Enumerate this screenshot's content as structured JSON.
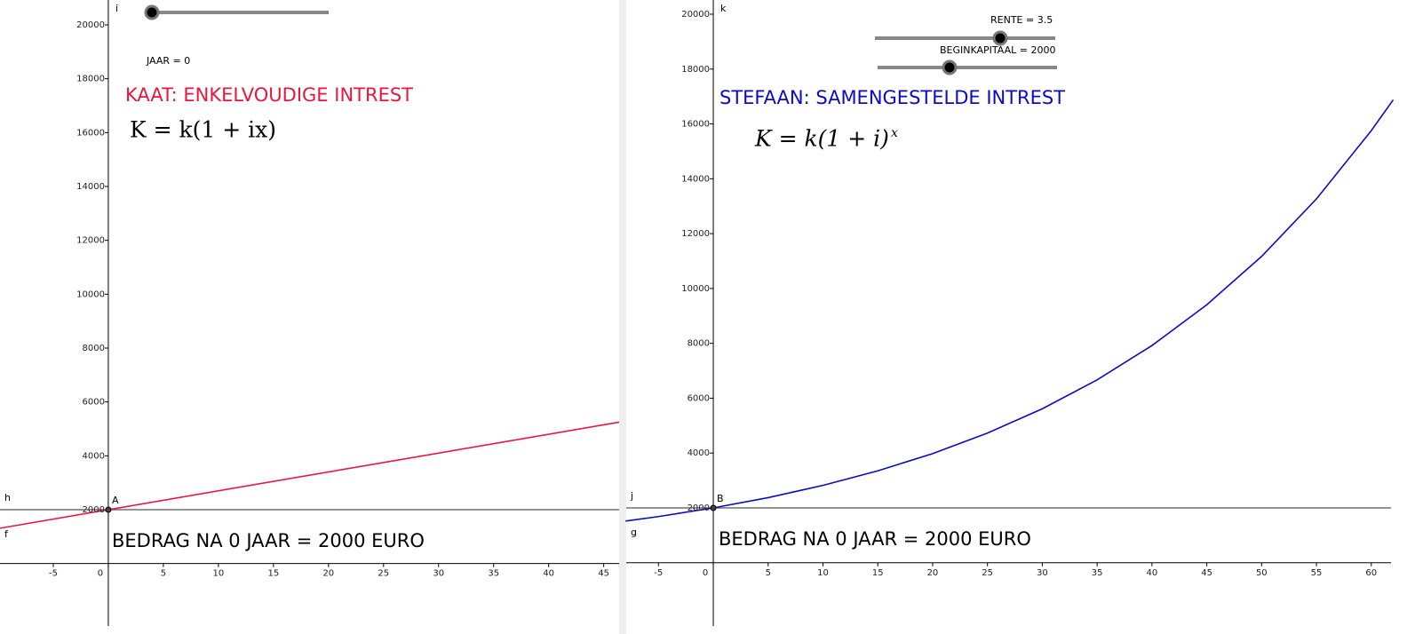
{
  "chart_data": [
    {
      "type": "line",
      "title": "KAAT: ENKELVOUDIGE INTREST",
      "title_color": "#e8173e",
      "formula": "K = k(1 + ix)",
      "slider_label": "JAAR = 0",
      "ylabel": "i",
      "result": "BEDRAG NA 0 JAAR = 2000 EURO",
      "hline": {
        "label": "h",
        "value": 2000
      },
      "point": {
        "label": "A",
        "x": 0,
        "y": 2000
      },
      "xlim": [
        -9.84,
        46.4
      ],
      "ylim": [
        -2319,
        20923
      ],
      "xticks": [
        -5,
        0,
        5,
        10,
        15,
        20,
        25,
        30,
        35,
        40,
        45
      ],
      "yticks": [
        2000,
        4000,
        6000,
        8000,
        10000,
        12000,
        14000,
        16000,
        18000,
        20000
      ],
      "series": [
        {
          "name": "f",
          "color": "#e8173e",
          "x": [
            -9.84,
            46.4
          ],
          "values": [
            1311,
            5248
          ]
        }
      ]
    },
    {
      "type": "line",
      "title": "STEFAAN: SAMENGESTELDE INTREST",
      "title_color": "#0a0ac8",
      "formula": "K = k(1 + i)",
      "formula_exponent": "x",
      "slider_labels": [
        "RENTE = 3.5",
        "BEGINKAPITAAL = 2000"
      ],
      "ylabel": "k",
      "result": "BEDRAG NA 0 JAAR = 2000 EURO",
      "hline": {
        "label": "j",
        "value": 2000
      },
      "point": {
        "label": "B",
        "x": 0,
        "y": 2000
      },
      "xlim": [
        -7.94,
        61.8
      ],
      "ylim": [
        -2306,
        20518
      ],
      "xticks": [
        -5,
        0,
        5,
        10,
        15,
        20,
        25,
        30,
        35,
        40,
        45,
        50,
        55,
        60
      ],
      "yticks": [
        2000,
        4000,
        6000,
        8000,
        10000,
        12000,
        14000,
        16000,
        18000,
        20000
      ],
      "series": [
        {
          "name": "g",
          "color": "#0a0ac8",
          "x": [
            -8,
            -5,
            0,
            5,
            10,
            15,
            20,
            25,
            30,
            35,
            40,
            45,
            50,
            55,
            60,
            62
          ],
          "values": [
            1519,
            1684,
            2000,
            2375,
            2821,
            3351,
            3980,
            4726,
            5614,
            6667,
            7919,
            9405,
            11170,
            13266,
            15756,
            16878
          ]
        }
      ]
    }
  ]
}
